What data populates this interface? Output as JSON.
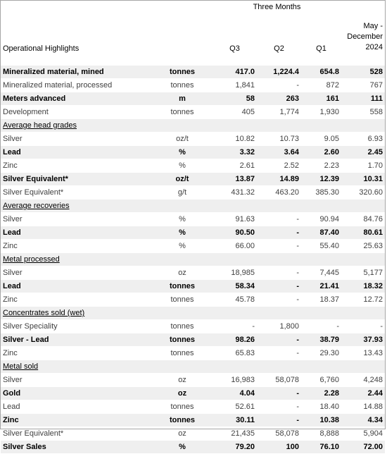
{
  "header": {
    "group_label": "Three Months",
    "title": "Operational Highlights",
    "col_q3": "Q3",
    "col_q2": "Q2",
    "col_q1": "Q1",
    "col_ytd_line1": "May -",
    "col_ytd_line2": "December",
    "col_ytd_line3": "2024"
  },
  "rows": [
    {
      "label": "Mineralized material, mined",
      "unit": "tonnes",
      "q3": "417.0",
      "q2": "1,224.4",
      "q1": "654.8",
      "ytd": "528"
    },
    {
      "label": "Mineralized material, processed",
      "unit": "tonnes",
      "q3": "1,841",
      "q2": "-",
      "q1": "872",
      "ytd": "767"
    },
    {
      "label": "Meters advanced",
      "unit": "m",
      "q3": "58",
      "q2": "263",
      "q1": "161",
      "ytd": "111"
    },
    {
      "label": "Development",
      "unit": "tonnes",
      "q3": "405",
      "q2": "1,774",
      "q1": "1,930",
      "ytd": "558"
    },
    {
      "label": "Average head grades",
      "unit": "",
      "q3": "",
      "q2": "",
      "q1": "",
      "ytd": ""
    },
    {
      "label": "Silver",
      "unit": "oz/t",
      "q3": "10.82",
      "q2": "10.73",
      "q1": "9.05",
      "ytd": "6.93"
    },
    {
      "label": "Lead",
      "unit": "%",
      "q3": "3.32",
      "q2": "3.64",
      "q1": "2.60",
      "ytd": "2.45"
    },
    {
      "label": "Zinc",
      "unit": "%",
      "q3": "2.61",
      "q2": "2.52",
      "q1": "2.23",
      "ytd": "1.70"
    },
    {
      "label": "Silver Equivalent*",
      "unit": "oz/t",
      "q3": "13.87",
      "q2": "14.89",
      "q1": "12.39",
      "ytd": "10.31"
    },
    {
      "label": "Silver Equivalent*",
      "unit": "g/t",
      "q3": "431.32",
      "q2": "463.20",
      "q1": "385.30",
      "ytd": "320.60"
    },
    {
      "label": "Average recoveries",
      "unit": "",
      "q3": "",
      "q2": "",
      "q1": "",
      "ytd": ""
    },
    {
      "label": "Silver",
      "unit": "%",
      "q3": "91.63",
      "q2": "-",
      "q1": "90.94",
      "ytd": "84.76"
    },
    {
      "label": "Lead",
      "unit": "%",
      "q3": "90.50",
      "q2": "-",
      "q1": "87.40",
      "ytd": "80.61"
    },
    {
      "label": "Zinc",
      "unit": "%",
      "q3": "66.00",
      "q2": "-",
      "q1": "55.40",
      "ytd": "25.63"
    },
    {
      "label": "Metal processed",
      "unit": "",
      "q3": "",
      "q2": "",
      "q1": "",
      "ytd": ""
    },
    {
      "label": "Silver",
      "unit": "oz",
      "q3": "18,985",
      "q2": "-",
      "q1": "7,445",
      "ytd": "5,177"
    },
    {
      "label": "Lead",
      "unit": "tonnes",
      "q3": "58.34",
      "q2": "-",
      "q1": "21.41",
      "ytd": "18.32"
    },
    {
      "label": "Zinc",
      "unit": "tonnes",
      "q3": "45.78",
      "q2": "-",
      "q1": "18.37",
      "ytd": "12.72"
    },
    {
      "label": "Concentrates sold (wet)",
      "unit": "",
      "q3": "",
      "q2": "",
      "q1": "",
      "ytd": ""
    },
    {
      "label": "Silver Speciality",
      "unit": "tonnes",
      "q3": "-",
      "q2": "1,800",
      "q1": "-",
      "ytd": "-"
    },
    {
      "label": "Silver - Lead",
      "unit": "tonnes",
      "q3": "98.26",
      "q2": "-",
      "q1": "38.79",
      "ytd": "37.93"
    },
    {
      "label": "Zinc",
      "unit": "tonnes",
      "q3": "65.83",
      "q2": "-",
      "q1": "29.30",
      "ytd": "13.43"
    },
    {
      "label": "Metal sold",
      "unit": "",
      "q3": "",
      "q2": "",
      "q1": "",
      "ytd": ""
    },
    {
      "label": "Silver",
      "unit": "oz",
      "q3": "16,983",
      "q2": "58,078",
      "q1": "6,760",
      "ytd": "4,248"
    },
    {
      "label": "Gold",
      "unit": "oz",
      "q3": "4.04",
      "q2": "-",
      "q1": "2.28",
      "ytd": "2.44"
    },
    {
      "label": "Lead",
      "unit": "tonnes",
      "q3": "52.61",
      "q2": "-",
      "q1": "18.40",
      "ytd": "14.88"
    },
    {
      "label": "Zinc",
      "unit": "tonnes",
      "q3": "30.11",
      "q2": "-",
      "q1": "10.38",
      "ytd": "4.34"
    },
    {
      "label": "Silver Equivalent*",
      "unit": "oz",
      "q3": "21,435",
      "q2": "58,078",
      "q1": "8,888",
      "ytd": "5,904"
    },
    {
      "label": "Silver Sales",
      "unit": "%",
      "q3": "79.20",
      "q2": "100",
      "q1": "76.10",
      "ytd": "72.00"
    }
  ]
}
